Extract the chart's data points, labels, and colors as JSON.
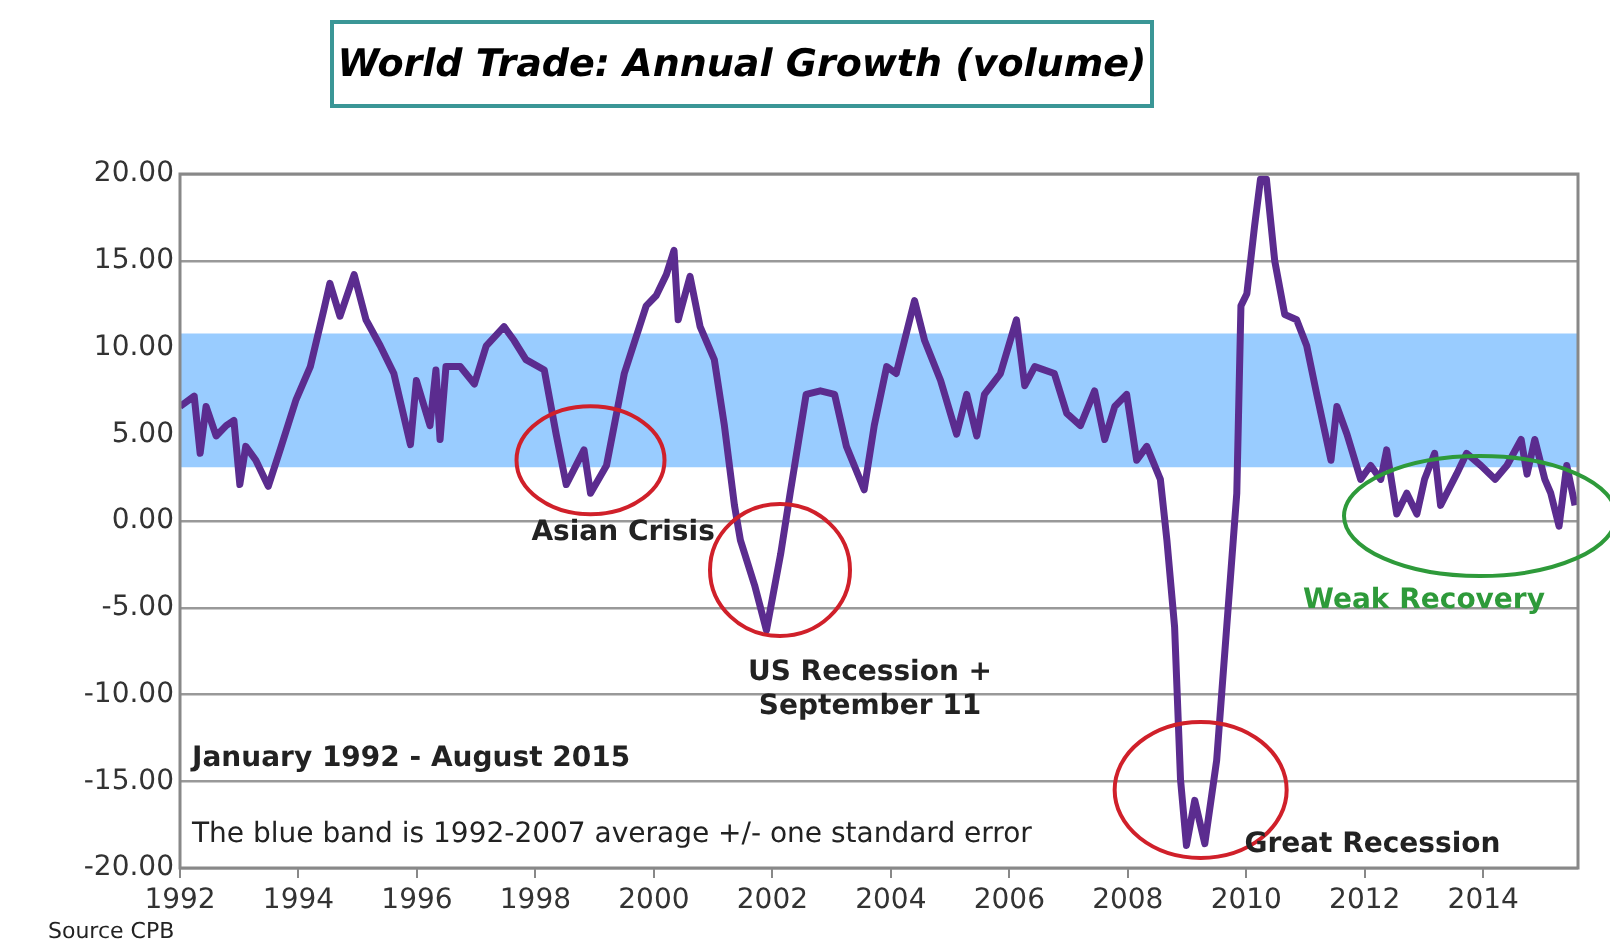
{
  "chart_data": {
    "type": "line",
    "title": "World Trade: Annual Growth (volume)",
    "xlim": [
      1992,
      2015.6
    ],
    "xticks": [
      1992,
      1994,
      1996,
      1998,
      2000,
      2002,
      2004,
      2006,
      2008,
      2010,
      2012,
      2014
    ],
    "ylim": [
      -20,
      20
    ],
    "yticks": [
      {
        "value": -20,
        "label": "-20.00"
      },
      {
        "value": -15,
        "label": "-15.00"
      },
      {
        "value": -10,
        "label": "-10.00"
      },
      {
        "value": -5,
        "label": "-5.00"
      },
      {
        "value": 0,
        "label": "0.00"
      },
      {
        "value": 5,
        "label": "5.00"
      },
      {
        "value": 10,
        "label": "10.00"
      },
      {
        "value": 15,
        "label": "15.00"
      },
      {
        "value": 20,
        "label": "20.00"
      }
    ],
    "grid": "y",
    "legend": false,
    "marker": "none",
    "line_style": "solid",
    "bands": [
      {
        "axis": "y",
        "from": 3.1,
        "to": 10.8,
        "color": "#99ccff"
      }
    ],
    "series": [
      {
        "color": "#5b2c8f",
        "x": [
          1992,
          1992.24,
          1992.34,
          1992.44,
          1992.61,
          1992.78,
          1992.91,
          1993.01,
          1993.11,
          1993.28,
          1993.49,
          1993.69,
          1993.96,
          1994.2,
          1994.43,
          1994.53,
          1994.7,
          1994.94,
          1995.14,
          1995.38,
          1995.61,
          1995.89,
          1995.99,
          1996.22,
          1996.32,
          1996.39,
          1996.49,
          1996.73,
          1996.97,
          1997.17,
          1997.47,
          1997.64,
          1997.84,
          1998.15,
          1998.35,
          1998.52,
          1998.82,
          1998.93,
          1999.2,
          1999.5,
          1999.87,
          2000.04,
          2000.21,
          2000.34,
          2000.41,
          2000.61,
          2000.78,
          2001.02,
          2001.19,
          2001.36,
          2001.46,
          2001.7,
          2001.9,
          2002.14,
          2002.3,
          2002.57,
          2002.81,
          2003.05,
          2003.25,
          2003.55,
          2003.72,
          2003.93,
          2004.09,
          2004.4,
          2004.57,
          2004.84,
          2005.11,
          2005.28,
          2005.45,
          2005.58,
          2005.85,
          2006.12,
          2006.26,
          2006.43,
          2006.76,
          2006.97,
          2007.2,
          2007.44,
          2007.61,
          2007.78,
          2007.98,
          2008.15,
          2008.32,
          2008.55,
          2008.66,
          2008.79,
          2008.89,
          2008.99,
          2009.13,
          2009.3,
          2009.5,
          2009.67,
          2009.84,
          2009.91,
          2010.01,
          2010.14,
          2010.24,
          2010.34,
          2010.48,
          2010.65,
          2010.85,
          2011.02,
          2011.19,
          2011.43,
          2011.53,
          2011.7,
          2011.93,
          2012.1,
          2012.27,
          2012.37,
          2012.54,
          2012.71,
          2012.88,
          2013.01,
          2013.18,
          2013.28,
          2013.55,
          2013.72,
          2013.96,
          2014.2,
          2014.4,
          2014.64,
          2014.74,
          2014.87,
          2015.04,
          2015.14,
          2015.28,
          2015.41,
          2015.55
        ],
        "values": [
          6.6,
          7.2,
          3.9,
          6.6,
          4.9,
          5.5,
          5.8,
          2.1,
          4.3,
          3.5,
          2.0,
          4.1,
          7.0,
          8.9,
          12.2,
          13.7,
          11.8,
          14.2,
          11.6,
          10.1,
          8.5,
          4.4,
          8.1,
          5.5,
          8.7,
          4.7,
          8.9,
          8.9,
          7.9,
          10.1,
          11.2,
          10.4,
          9.3,
          8.7,
          5.0,
          2.1,
          4.1,
          1.6,
          3.2,
          8.5,
          12.4,
          13.0,
          14.2,
          15.6,
          11.6,
          14.1,
          11.2,
          9.3,
          5.5,
          0.9,
          -1.1,
          -3.7,
          -6.3,
          -1.9,
          1.6,
          7.3,
          7.5,
          7.3,
          4.3,
          1.8,
          5.5,
          8.9,
          8.5,
          12.7,
          10.4,
          8.1,
          5.0,
          7.3,
          4.9,
          7.3,
          8.5,
          11.6,
          7.8,
          8.9,
          8.5,
          6.2,
          5.5,
          7.5,
          4.7,
          6.6,
          7.3,
          3.5,
          4.3,
          2.4,
          -1.1,
          -6.1,
          -14.9,
          -18.7,
          -16.1,
          -18.6,
          -13.8,
          -6.1,
          1.6,
          12.4,
          13.1,
          17.0,
          19.7,
          19.7,
          15.0,
          11.9,
          11.6,
          10.1,
          7.3,
          3.5,
          6.6,
          5.0,
          2.4,
          3.2,
          2.4,
          4.1,
          0.4,
          1.6,
          0.4,
          2.4,
          3.9,
          0.9,
          2.7,
          3.9,
          3.2,
          2.4,
          3.2,
          4.7,
          2.7,
          4.7,
          2.4,
          1.6,
          -0.3,
          3.2,
          0.9
        ]
      }
    ],
    "annotations": [
      {
        "text": "Asian Crisis",
        "x": 1998.93,
        "y": 3.5
      },
      "US Recession +\nSeptember 11",
      {
        "text": "Great Recession",
        "x": 2009.23,
        "y": -15.5
      },
      "Weak Recovery",
      "January 1992 - August 2015",
      "The blue band is 1992-2007 average +/- one standard error",
      "Source CPB"
    ]
  }
}
